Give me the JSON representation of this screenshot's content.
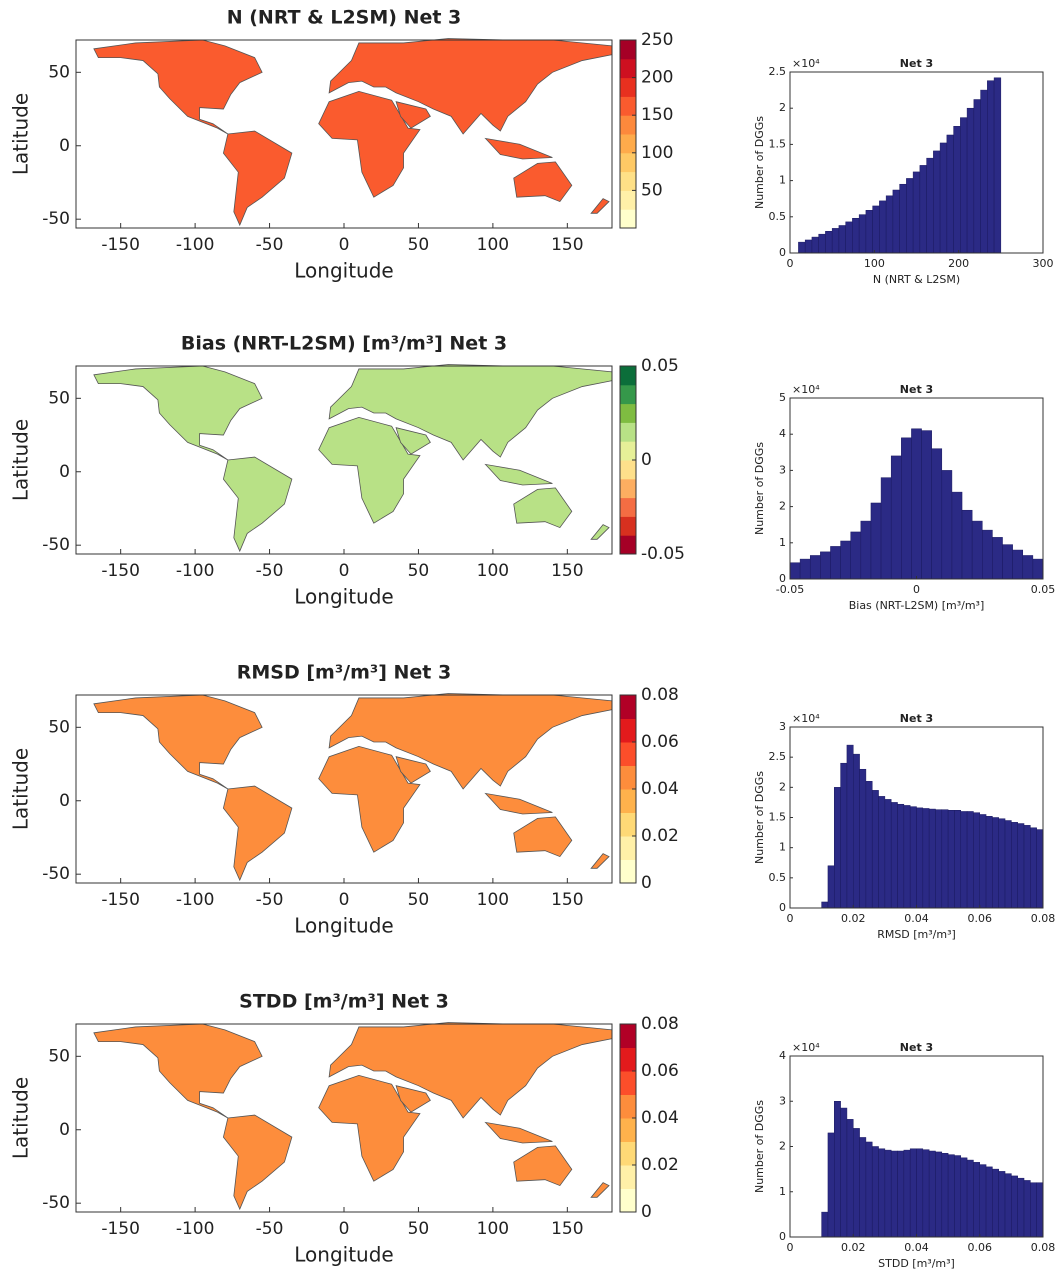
{
  "chart_data": [
    {
      "type": "map",
      "title": "N (NRT & L2SM) Net 3",
      "xlabel": "Longitude",
      "ylabel": "Latitude",
      "xlim": [
        -180,
        180
      ],
      "xticks": [
        -150,
        -100,
        -50,
        0,
        50,
        100,
        150
      ],
      "ylim": [
        -56,
        72
      ],
      "yticks": [
        -50,
        0,
        50
      ],
      "clim": [
        0,
        250
      ],
      "cticks": [
        50,
        100,
        150,
        200,
        250
      ],
      "colors": [
        "#ffffcc",
        "#fff0a8",
        "#fee087",
        "#fec965",
        "#feab4b",
        "#fd893c",
        "#fa5b2e",
        "#e8301f",
        "#ce1020",
        "#a50026"
      ]
    },
    {
      "type": "histogram",
      "title": "Net 3",
      "xlabel": "N (NRT & L2SM)",
      "ylabel": "Number of DGGs",
      "y_scale_label": "×10⁴",
      "color": "#2b2a85",
      "xlim": [
        0,
        300
      ],
      "xticks": [
        0,
        100,
        200,
        300
      ],
      "ylim": [
        0,
        2.5
      ],
      "yticks": [
        0,
        0.5,
        1,
        1.5,
        2,
        2.5
      ],
      "bins": [
        10,
        18,
        26,
        34,
        42,
        50,
        58,
        66,
        74,
        82,
        90,
        98,
        106,
        114,
        122,
        130,
        138,
        146,
        154,
        162,
        170,
        178,
        186,
        194,
        202,
        210,
        218,
        226,
        234,
        242,
        250
      ],
      "values": [
        0.15,
        0.18,
        0.22,
        0.26,
        0.3,
        0.34,
        0.38,
        0.43,
        0.48,
        0.53,
        0.59,
        0.65,
        0.72,
        0.79,
        0.87,
        0.95,
        1.03,
        1.12,
        1.21,
        1.31,
        1.41,
        1.52,
        1.63,
        1.75,
        1.87,
        2.0,
        2.12,
        2.25,
        2.38,
        2.42
      ]
    },
    {
      "type": "map",
      "title": "Bias (NRT-L2SM) [m³/m³] Net 3",
      "xlabel": "Longitude",
      "ylabel": "Latitude",
      "xlim": [
        -180,
        180
      ],
      "xticks": [
        -150,
        -100,
        -50,
        0,
        50,
        100,
        150
      ],
      "ylim": [
        -56,
        72
      ],
      "yticks": [
        -50,
        0,
        50
      ],
      "clim": [
        -0.05,
        0.05
      ],
      "cticks": [
        -0.05,
        0,
        0.05
      ],
      "colors": [
        "#a50026",
        "#d7301f",
        "#f46d43",
        "#fdae61",
        "#fee08b",
        "#e6f098",
        "#b8e186",
        "#7fbc41",
        "#35984a",
        "#0b6e3a"
      ]
    },
    {
      "type": "histogram",
      "title": "Net 3",
      "xlabel": "Bias (NRT-L2SM) [m³/m³]",
      "ylabel": "Number of DGGs",
      "y_scale_label": "×10⁴",
      "color": "#2b2a85",
      "xlim": [
        -0.05,
        0.05
      ],
      "xticks": [
        -0.05,
        0,
        0.05
      ],
      "ylim": [
        0,
        5
      ],
      "yticks": [
        0,
        1,
        2,
        3,
        4,
        5
      ],
      "bins": [
        -0.05,
        -0.046,
        -0.042,
        -0.038,
        -0.034,
        -0.03,
        -0.026,
        -0.022,
        -0.018,
        -0.014,
        -0.01,
        -0.006,
        -0.002,
        0.002,
        0.006,
        0.01,
        0.014,
        0.018,
        0.022,
        0.026,
        0.03,
        0.034,
        0.038,
        0.042,
        0.046,
        0.05
      ],
      "values": [
        0.45,
        0.55,
        0.65,
        0.75,
        0.9,
        1.05,
        1.3,
        1.6,
        2.1,
        2.8,
        3.4,
        3.9,
        4.15,
        4.1,
        3.6,
        3.0,
        2.4,
        1.9,
        1.6,
        1.35,
        1.15,
        0.95,
        0.8,
        0.65,
        0.55
      ]
    },
    {
      "type": "map",
      "title": "RMSD [m³/m³] Net 3",
      "xlabel": "Longitude",
      "ylabel": "Latitude",
      "xlim": [
        -180,
        180
      ],
      "xticks": [
        -150,
        -100,
        -50,
        0,
        50,
        100,
        150
      ],
      "ylim": [
        -56,
        72
      ],
      "yticks": [
        -50,
        0,
        50
      ],
      "clim": [
        0,
        0.08
      ],
      "cticks": [
        0,
        0.02,
        0.04,
        0.06,
        0.08
      ],
      "colors": [
        "#ffffcc",
        "#fff0a8",
        "#fed976",
        "#feb24c",
        "#fd8d3c",
        "#fc4e2a",
        "#e31a1c",
        "#b10026"
      ]
    },
    {
      "type": "histogram",
      "title": "Net 3",
      "xlabel": "RMSD [m³/m³]",
      "ylabel": "Number of DGGs",
      "y_scale_label": "×10⁴",
      "color": "#2b2a85",
      "xlim": [
        0,
        0.08
      ],
      "xticks": [
        0,
        0.02,
        0.04,
        0.06,
        0.08
      ],
      "ylim": [
        0,
        3
      ],
      "yticks": [
        0,
        0.5,
        1,
        1.5,
        2,
        2.5,
        3
      ],
      "bins": [
        0,
        0.002,
        0.004,
        0.006,
        0.008,
        0.01,
        0.012,
        0.014,
        0.016,
        0.018,
        0.02,
        0.022,
        0.024,
        0.026,
        0.028,
        0.03,
        0.032,
        0.034,
        0.036,
        0.038,
        0.04,
        0.042,
        0.044,
        0.046,
        0.048,
        0.05,
        0.052,
        0.054,
        0.056,
        0.058,
        0.06,
        0.062,
        0.064,
        0.066,
        0.068,
        0.07,
        0.072,
        0.074,
        0.076,
        0.078,
        0.08
      ],
      "values": [
        0,
        0,
        0,
        0,
        0,
        0.1,
        0.7,
        2.0,
        2.4,
        2.7,
        2.55,
        2.3,
        2.1,
        1.95,
        1.85,
        1.8,
        1.75,
        1.72,
        1.7,
        1.68,
        1.66,
        1.65,
        1.64,
        1.63,
        1.63,
        1.62,
        1.62,
        1.6,
        1.6,
        1.58,
        1.55,
        1.52,
        1.5,
        1.48,
        1.45,
        1.42,
        1.4,
        1.37,
        1.33,
        1.3
      ]
    },
    {
      "type": "map",
      "title": "STDD [m³/m³] Net 3",
      "xlabel": "Longitude",
      "ylabel": "Latitude",
      "xlim": [
        -180,
        180
      ],
      "xticks": [
        -150,
        -100,
        -50,
        0,
        50,
        100,
        150
      ],
      "ylim": [
        -56,
        72
      ],
      "yticks": [
        -50,
        0,
        50
      ],
      "clim": [
        0,
        0.08
      ],
      "cticks": [
        0,
        0.02,
        0.04,
        0.06,
        0.08
      ],
      "colors": [
        "#ffffcc",
        "#fff0a8",
        "#fed976",
        "#feb24c",
        "#fd8d3c",
        "#fc4e2a",
        "#e31a1c",
        "#b10026"
      ]
    },
    {
      "type": "histogram",
      "title": "Net 3",
      "xlabel": "STDD [m³/m³]",
      "ylabel": "Number of DGGs",
      "y_scale_label": "×10⁴",
      "color": "#2b2a85",
      "xlim": [
        0,
        0.08
      ],
      "xticks": [
        0,
        0.02,
        0.04,
        0.06,
        0.08
      ],
      "ylim": [
        0,
        4
      ],
      "yticks": [
        0,
        1,
        2,
        3,
        4
      ],
      "bins": [
        0,
        0.002,
        0.004,
        0.006,
        0.008,
        0.01,
        0.012,
        0.014,
        0.016,
        0.018,
        0.02,
        0.022,
        0.024,
        0.026,
        0.028,
        0.03,
        0.032,
        0.034,
        0.036,
        0.038,
        0.04,
        0.042,
        0.044,
        0.046,
        0.048,
        0.05,
        0.052,
        0.054,
        0.056,
        0.058,
        0.06,
        0.062,
        0.064,
        0.066,
        0.068,
        0.07,
        0.072,
        0.074,
        0.076,
        0.078,
        0.08
      ],
      "values": [
        0,
        0,
        0,
        0,
        0,
        0.55,
        2.3,
        3.0,
        2.85,
        2.6,
        2.4,
        2.2,
        2.1,
        2.0,
        1.95,
        1.92,
        1.9,
        1.9,
        1.92,
        1.95,
        1.95,
        1.93,
        1.9,
        1.88,
        1.85,
        1.82,
        1.8,
        1.75,
        1.7,
        1.65,
        1.6,
        1.55,
        1.5,
        1.45,
        1.4,
        1.35,
        1.3,
        1.25,
        1.2,
        1.2
      ]
    }
  ]
}
